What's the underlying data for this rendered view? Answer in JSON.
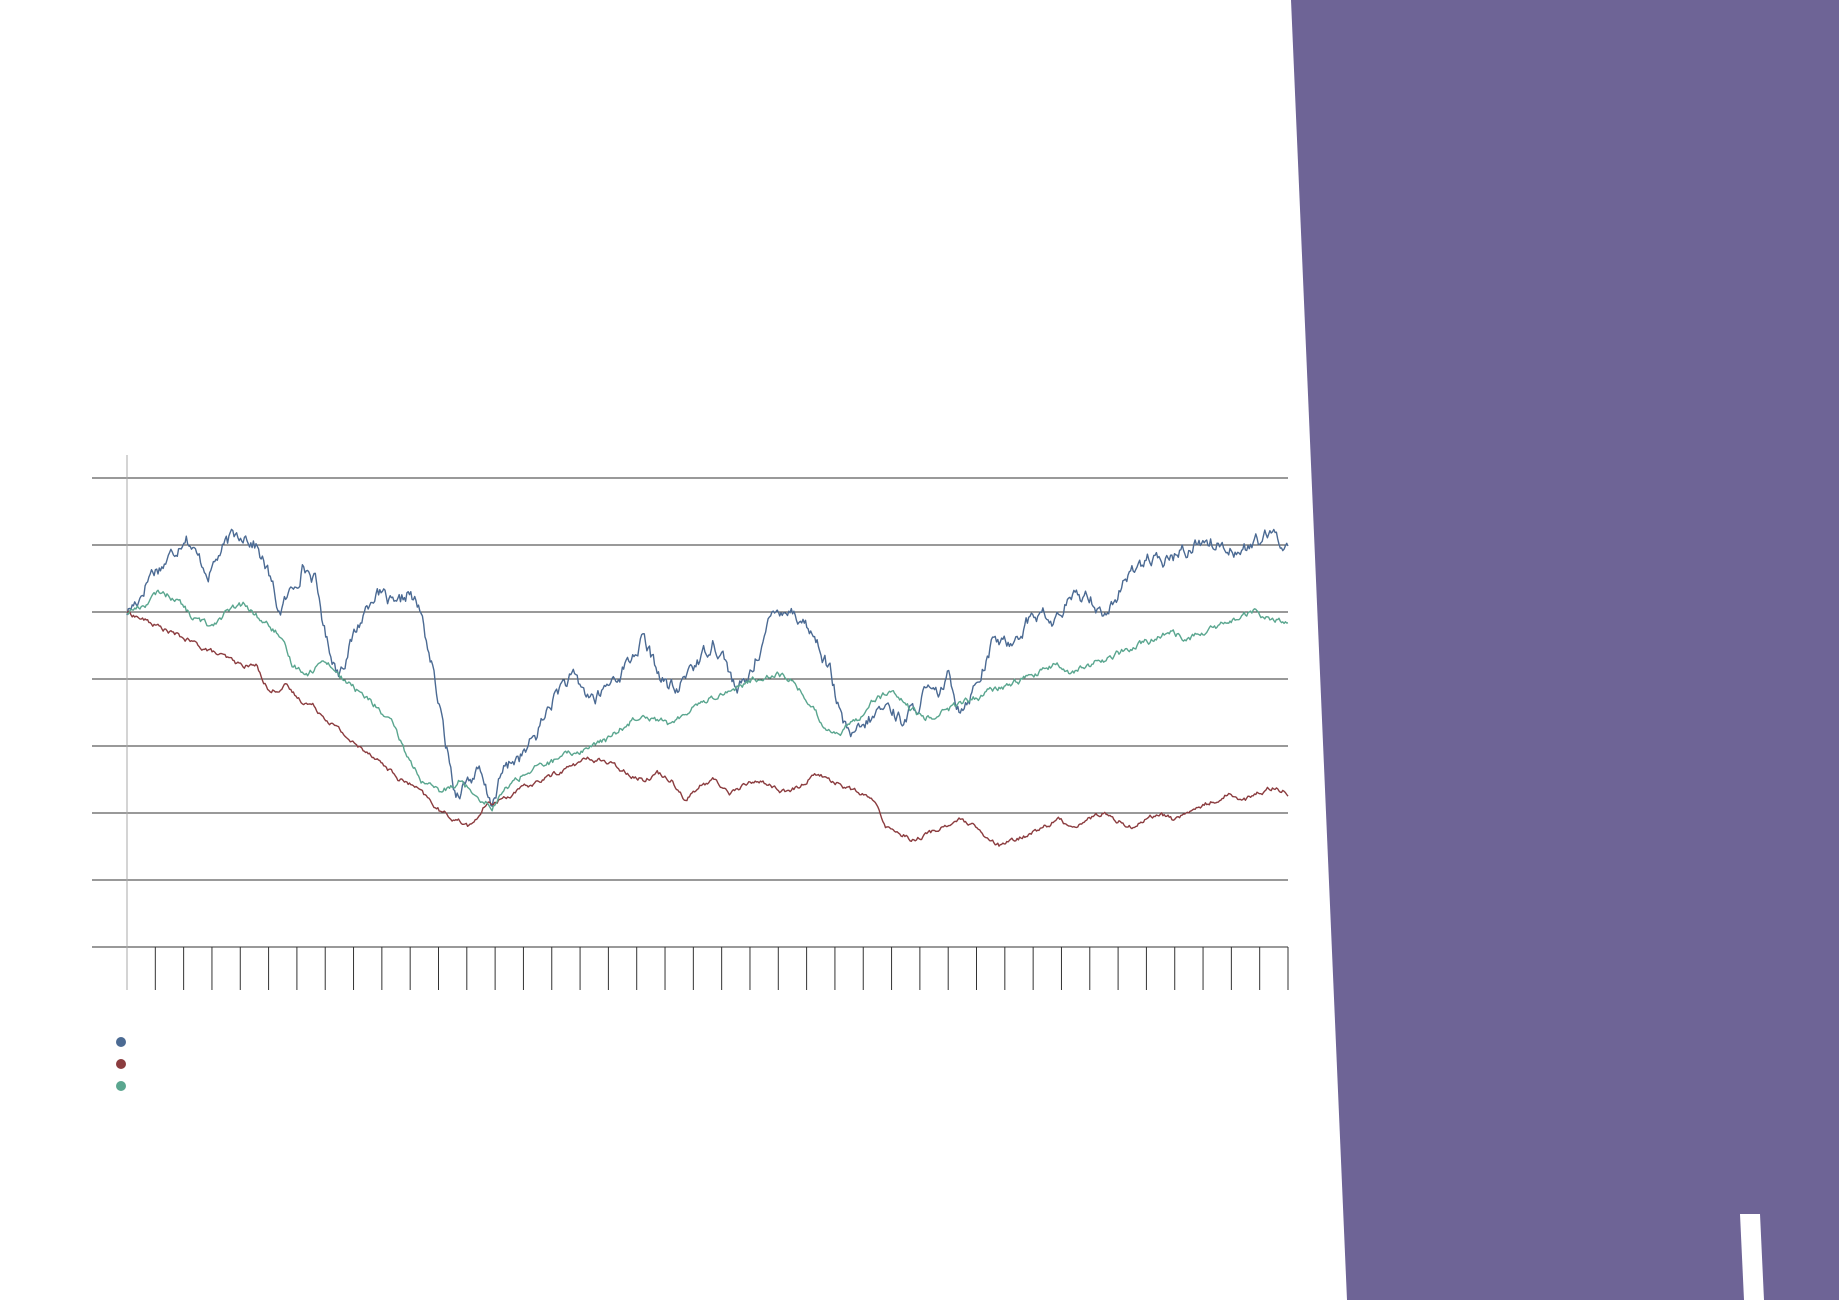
{
  "colors": {
    "panel": "#6e6496",
    "accent_bar": "#ffffff",
    "gridline": "#333333",
    "axis": "#aaaaaa"
  },
  "chart_data": {
    "type": "line",
    "title": "",
    "xlabel": "",
    "ylabel": "",
    "ylim": [
      0,
      7
    ],
    "grid": true,
    "legend": "bottom-left",
    "x_tick_count": 42,
    "series_x_range": [
      0,
      1
    ],
    "series": [
      {
        "color": "#4b6a93",
        "values": [
          5.0,
          5.2,
          5.6,
          5.7,
          5.9,
          6.2,
          5.8,
          5.6,
          5.9,
          6.1,
          6.2,
          6.0,
          5.6,
          5.0,
          5.3,
          5.7,
          5.5,
          4.6,
          4.1,
          4.5,
          4.9,
          5.3,
          5.2,
          5.0,
          5.3,
          5.0,
          4.2,
          3.2,
          2.3,
          2.5,
          2.6,
          2.1,
          2.6,
          2.8,
          2.9,
          3.2,
          3.6,
          3.9,
          4.0,
          3.8,
          3.7,
          3.9,
          4.1,
          4.3,
          4.6,
          4.2,
          3.9,
          3.8,
          4.2,
          4.3,
          4.6,
          4.3,
          3.8,
          4.0,
          4.5,
          4.9,
          5.1,
          5.0,
          4.8,
          4.5,
          4.1,
          3.3,
          3.1,
          3.3,
          3.5,
          3.6,
          3.4,
          3.5,
          3.8,
          3.7,
          4.0,
          3.6,
          3.8,
          4.2,
          4.6,
          4.5,
          4.7,
          4.9,
          5.0,
          4.8,
          5.1,
          5.2,
          5.3,
          5.0,
          5.1,
          5.4,
          5.7,
          5.8,
          5.7,
          5.8,
          5.9,
          6.0,
          6.1,
          6.0,
          6.0,
          5.9,
          6.0,
          6.1,
          6.1,
          6.0
        ]
      },
      {
        "color": "#8b3c3f",
        "values": [
          5.0,
          4.9,
          4.8,
          4.7,
          4.6,
          4.5,
          4.4,
          4.3,
          4.2,
          4.2,
          3.8,
          3.9,
          3.7,
          3.6,
          3.4,
          3.2,
          3.0,
          2.9,
          2.7,
          2.5,
          2.4,
          2.2,
          2.0,
          1.9,
          1.8,
          2.1,
          2.2,
          2.3,
          2.4,
          2.5,
          2.6,
          2.7,
          2.8,
          2.8,
          2.7,
          2.6,
          2.5,
          2.6,
          2.5,
          2.2,
          2.4,
          2.5,
          2.3,
          2.4,
          2.5,
          2.4,
          2.3,
          2.4,
          2.6,
          2.5,
          2.4,
          2.3,
          2.2,
          1.8,
          1.7,
          1.6,
          1.7,
          1.8,
          1.9,
          1.8,
          1.6,
          1.5,
          1.6,
          1.7,
          1.8,
          1.9,
          1.8,
          1.9,
          2.0,
          1.9,
          1.8,
          1.9,
          2.0,
          1.9,
          2.0,
          2.1,
          2.2,
          2.3,
          2.2,
          2.3,
          2.4,
          2.3
        ]
      },
      {
        "color": "#5aa68f",
        "values": [
          5.0,
          5.1,
          5.3,
          5.2,
          4.9,
          4.8,
          5.0,
          5.1,
          4.9,
          4.7,
          4.2,
          4.1,
          4.3,
          4.0,
          3.8,
          3.6,
          3.3,
          2.8,
          2.4,
          2.3,
          2.5,
          2.3,
          2.1,
          2.4,
          2.6,
          2.7,
          2.8,
          2.9,
          3.0,
          3.1,
          3.3,
          3.5,
          3.4,
          3.3,
          3.6,
          3.7,
          3.8,
          3.9,
          4.0,
          4.1,
          4.0,
          3.7,
          3.3,
          3.2,
          3.4,
          3.7,
          3.8,
          3.6,
          3.4,
          3.5,
          3.6,
          3.7,
          3.8,
          3.9,
          4.0,
          4.1,
          4.2,
          4.1,
          4.2,
          4.3,
          4.4,
          4.5,
          4.6,
          4.7,
          4.6,
          4.7,
          4.8,
          4.9,
          5.0,
          4.9,
          4.8
        ]
      }
    ]
  }
}
